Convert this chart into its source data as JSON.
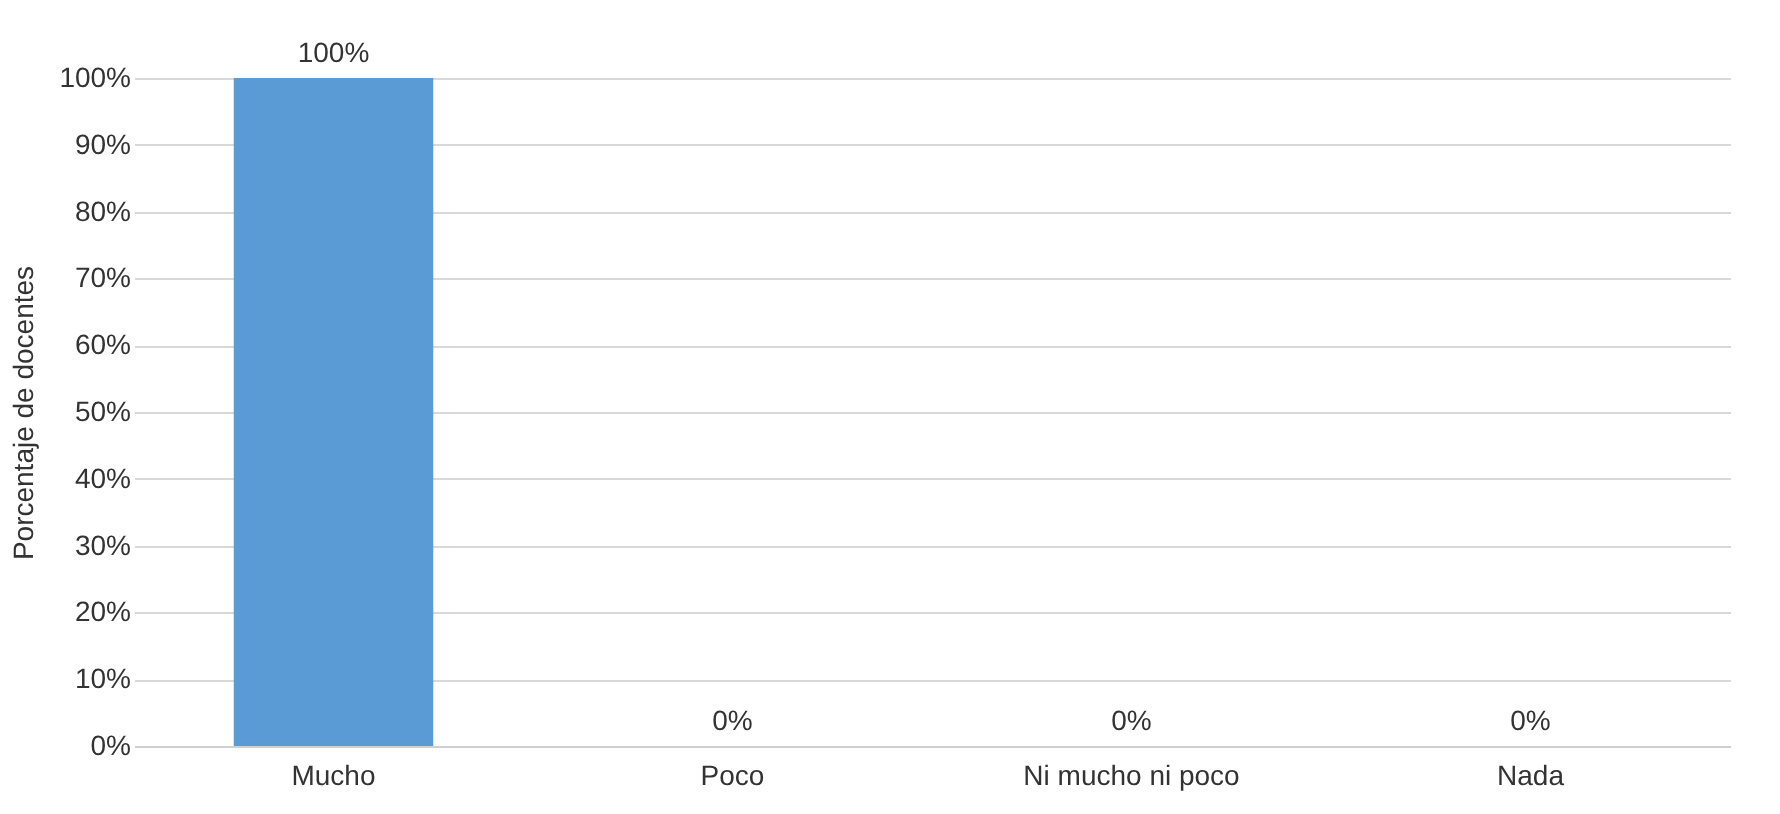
{
  "chart_data": {
    "type": "bar",
    "ylabel": "Porcentaje de docentes",
    "categories": [
      "Mucho",
      "Poco",
      "Ni mucho ni poco",
      "Nada"
    ],
    "values": [
      100,
      0,
      0,
      0
    ],
    "color": "#5b9bd5",
    "value_labels": [
      "100%",
      "0%",
      "0%",
      "0%"
    ],
    "ylim": [
      0,
      100
    ],
    "yticks": [
      {
        "value": 0,
        "label": "0%"
      },
      {
        "value": 10,
        "label": "10%"
      },
      {
        "value": 20,
        "label": "20%"
      },
      {
        "value": 30,
        "label": "30%"
      },
      {
        "value": 40,
        "label": "40%"
      },
      {
        "value": 50,
        "label": "50%"
      },
      {
        "value": 60,
        "label": "60%"
      },
      {
        "value": 70,
        "label": "70%"
      },
      {
        "value": 80,
        "label": "80%"
      },
      {
        "value": 90,
        "label": "90%"
      },
      {
        "value": 100,
        "label": "100%"
      }
    ],
    "grid": "y",
    "legend": false
  }
}
